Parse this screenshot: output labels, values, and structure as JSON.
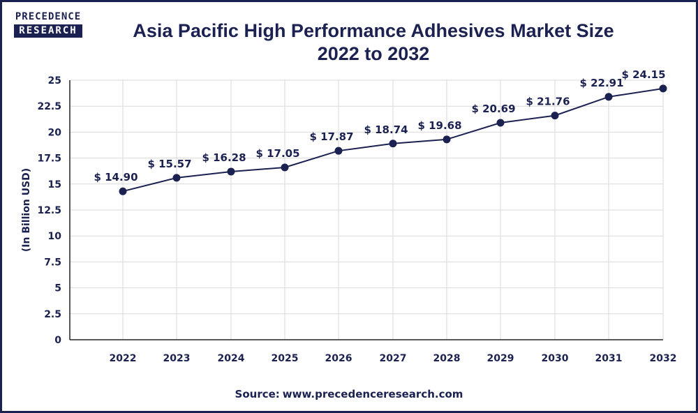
{
  "logo": {
    "line1": "PRECEDENCE",
    "line2": "RESEARCH"
  },
  "title_line1": "Asia Pacific High Performance Adhesives Market Size",
  "title_line2": "2022 to 2032",
  "source": {
    "label": "Source:",
    "url": "www.precedenceresearch.com"
  },
  "colors": {
    "primary": "#1b2150",
    "grid": "#d9d9d9",
    "background": "#ffffff"
  },
  "chart_data": {
    "type": "line",
    "title": "Asia Pacific High Performance Adhesives Market Size 2022 to 2032",
    "xlabel": "",
    "ylabel": "(In Billion USD)",
    "categories": [
      "2022",
      "2023",
      "2024",
      "2025",
      "2026",
      "2027",
      "2028",
      "2029",
      "2030",
      "2031",
      "2032"
    ],
    "values": [
      14.9,
      15.57,
      16.28,
      17.05,
      17.87,
      18.74,
      19.68,
      20.69,
      21.76,
      22.91,
      24.15
    ],
    "point_values": [
      14.3,
      15.6,
      16.2,
      16.6,
      18.2,
      18.9,
      19.3,
      20.9,
      21.6,
      23.4,
      24.2
    ],
    "data_labels": [
      "$ 14.90",
      "$ 15.57",
      "$ 16.28",
      "$ 17.05",
      "$ 17.87",
      "$ 18.74",
      "$ 19.68",
      "$ 20.69",
      "$ 21.76",
      "$ 22.91",
      "$ 24.15"
    ],
    "ylim": [
      0,
      25
    ],
    "yticks": [
      0,
      2.5,
      5,
      7.5,
      10,
      12.5,
      15,
      17.5,
      20,
      22.5,
      25
    ],
    "ytick_labels": [
      "0",
      "2.5",
      "5",
      "7.5",
      "10",
      "12.5",
      "15",
      "17.5",
      "20",
      "22.5",
      "25"
    ],
    "grid": true,
    "legend": "none"
  }
}
